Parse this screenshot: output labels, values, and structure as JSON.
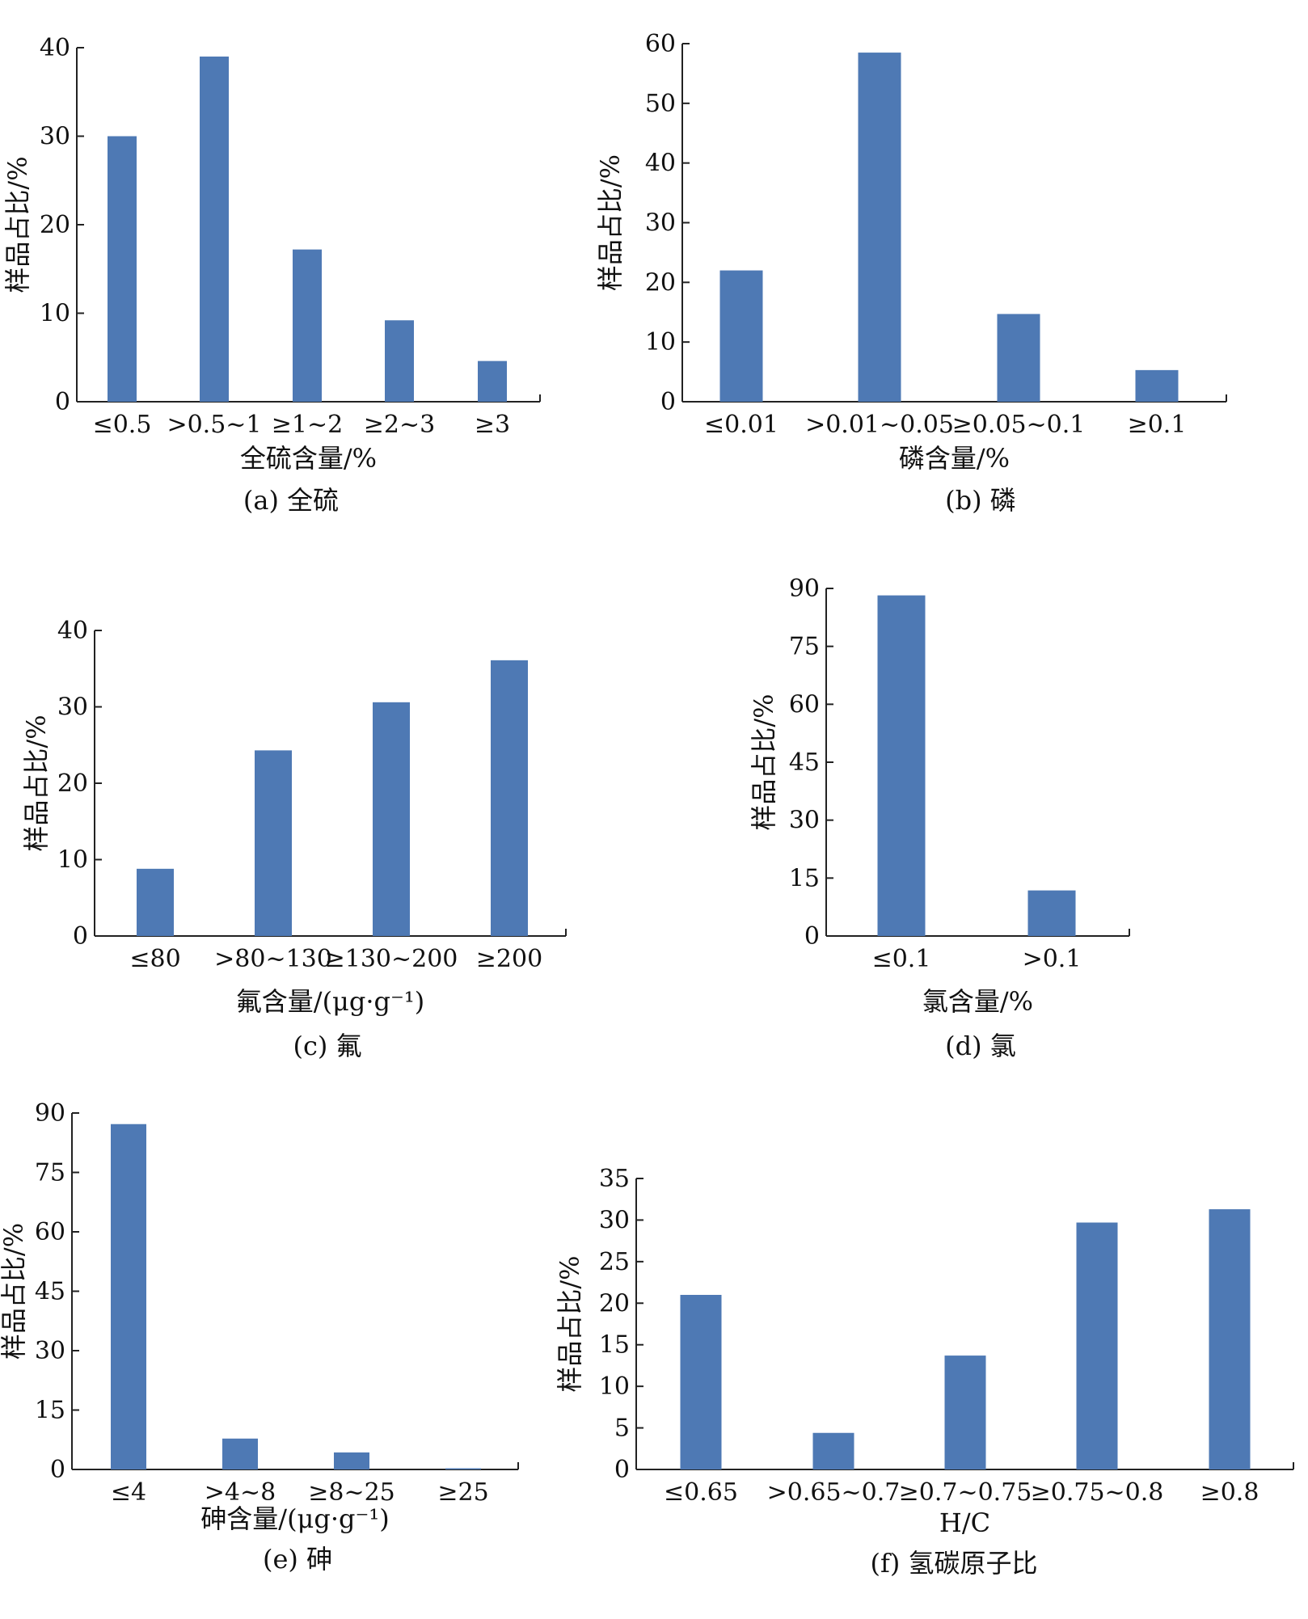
{
  "colors": {
    "bar": "#4e79b4",
    "axis": "#222222",
    "text": "#111111"
  },
  "chart_data": [
    {
      "id": "a",
      "type": "bar",
      "caption": "(a) 全硫",
      "xlabel": "全硫含量/%",
      "ylabel": "样品占比/%",
      "categories": [
        "≤0.5",
        ">0.5~1",
        "≥1~2",
        "≥2~3",
        "≥3"
      ],
      "values": [
        30,
        39,
        17.2,
        9.2,
        4.6
      ],
      "ylim": [
        0,
        40
      ],
      "yticks": [
        "0",
        "10",
        "20",
        "30",
        "40"
      ]
    },
    {
      "id": "b",
      "type": "bar",
      "caption": "(b) 磷",
      "xlabel": "磷含量/%",
      "ylabel": "样品占比/%",
      "categories": [
        "≤0.01",
        ">0.01~0.05",
        "≥0.05~0.1",
        "≥0.1"
      ],
      "values": [
        22,
        58.5,
        14.7,
        5.3
      ],
      "ylim": [
        0,
        60
      ],
      "yticks": [
        "0",
        "10",
        "20",
        "30",
        "40",
        "50",
        "60"
      ]
    },
    {
      "id": "c",
      "type": "bar",
      "caption": "(c) 氟",
      "xlabel": "氟含量/(μg·g⁻¹)",
      "ylabel": "样品占比/%",
      "categories": [
        "≤80",
        ">80~130",
        "≥130~200",
        "≥200"
      ],
      "values": [
        8.8,
        24.3,
        30.6,
        36.1
      ],
      "ylim": [
        0,
        40
      ],
      "yticks": [
        "0",
        "10",
        "20",
        "30",
        "40"
      ]
    },
    {
      "id": "d",
      "type": "bar",
      "caption": "(d) 氯",
      "xlabel": "氯含量/%",
      "ylabel": "样品占比/%",
      "categories": [
        "≤0.1",
        ">0.1"
      ],
      "values": [
        88.2,
        11.8
      ],
      "ylim": [
        0,
        90
      ],
      "yticks": [
        "0",
        "15",
        "30",
        "45",
        "60",
        "75",
        "90"
      ]
    },
    {
      "id": "e",
      "type": "bar",
      "caption": "(e) 砷",
      "xlabel": "砷含量/(μg·g⁻¹)",
      "ylabel": "样品占比/%",
      "categories": [
        "≤4",
        ">4~8",
        "≥8~25",
        "≥25"
      ],
      "values": [
        87.2,
        7.8,
        4.3,
        0.3
      ],
      "ylim": [
        0,
        90
      ],
      "yticks": [
        "0",
        "15",
        "30",
        "45",
        "60",
        "75",
        "90"
      ]
    },
    {
      "id": "f",
      "type": "bar",
      "caption": "(f) 氢碳原子比",
      "xlabel": "H/C",
      "ylabel": "样品占比/%",
      "categories": [
        "≤0.65",
        ">0.65~0.7",
        "≥0.7~0.75",
        "≥0.75~0.8",
        "≥0.8"
      ],
      "values": [
        21,
        4.4,
        13.7,
        29.7,
        31.3
      ],
      "ylim": [
        0,
        35
      ],
      "yticks": [
        "0",
        "5",
        "10",
        "15",
        "20",
        "25",
        "30",
        "35"
      ]
    }
  ]
}
